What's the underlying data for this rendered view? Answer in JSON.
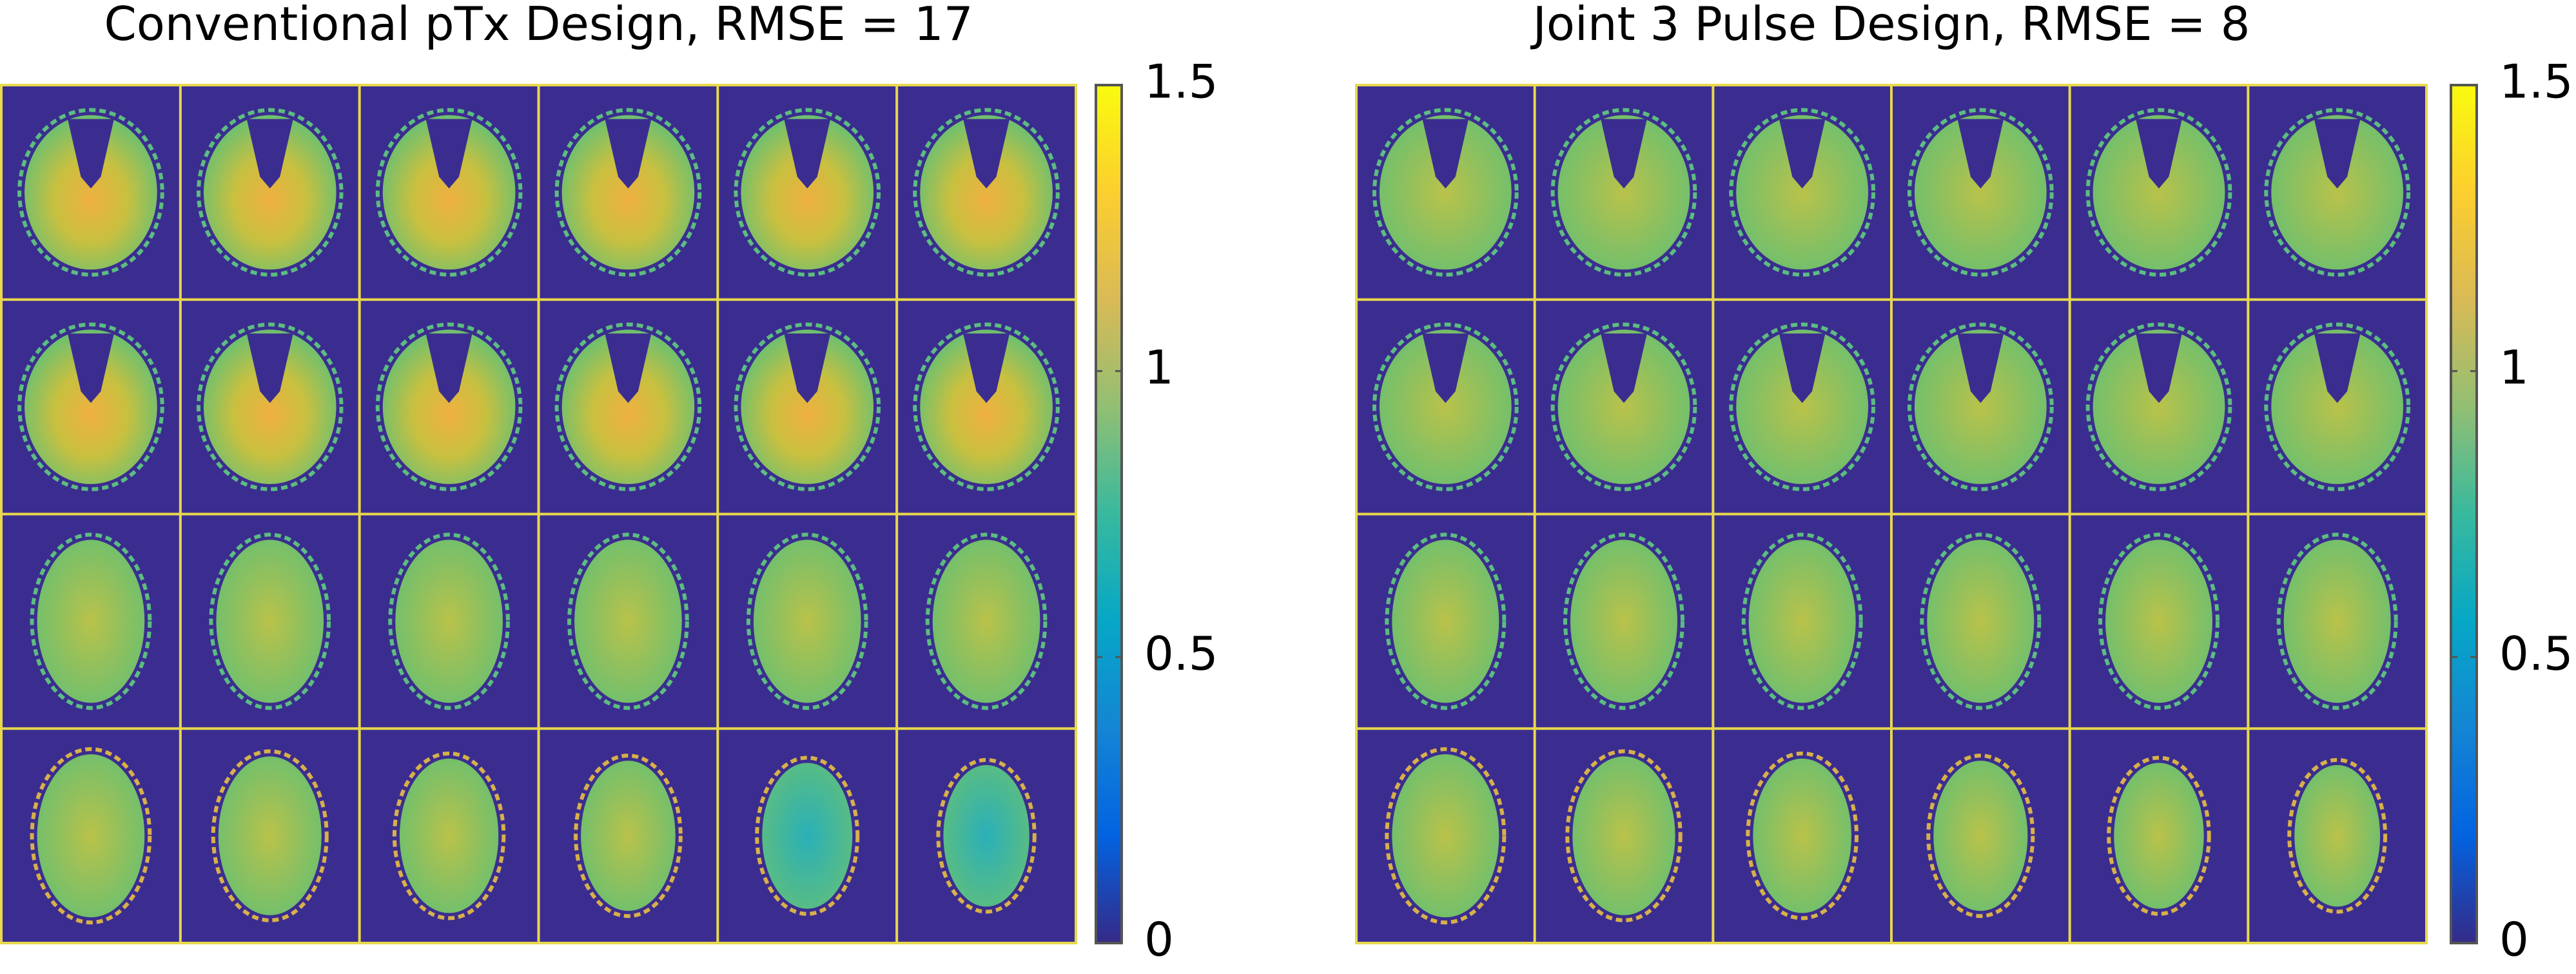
{
  "chart_data": [
    {
      "type": "montage",
      "title": "Conventional pTx Design, RMSE = 17",
      "clim": [
        0,
        1.5
      ],
      "cticks": [
        0,
        0.5,
        1,
        1.5
      ],
      "colormap": [
        "#352a87",
        "#0363e1",
        "#1485d4",
        "#06a7c6",
        "#38b99e",
        "#92bf73",
        "#d9ba56",
        "#fcce2e",
        "#f9fb0e"
      ],
      "frame_color": "#e8d84c",
      "background_color": "#3b2d8f"
    },
    {
      "type": "montage",
      "title": "Joint 3 Pulse Design, RMSE = 8",
      "clim": [
        0,
        1.5
      ],
      "cticks": [
        0,
        0.5,
        1,
        1.5
      ],
      "colormap": [
        "#352a87",
        "#0363e1",
        "#1485d4",
        "#06a7c6",
        "#38b99e",
        "#92bf73",
        "#d9ba56",
        "#fcce2e",
        "#f9fb0e"
      ],
      "frame_color": "#e8d84c",
      "background_color": "#3b2d8f"
    }
  ]
}
